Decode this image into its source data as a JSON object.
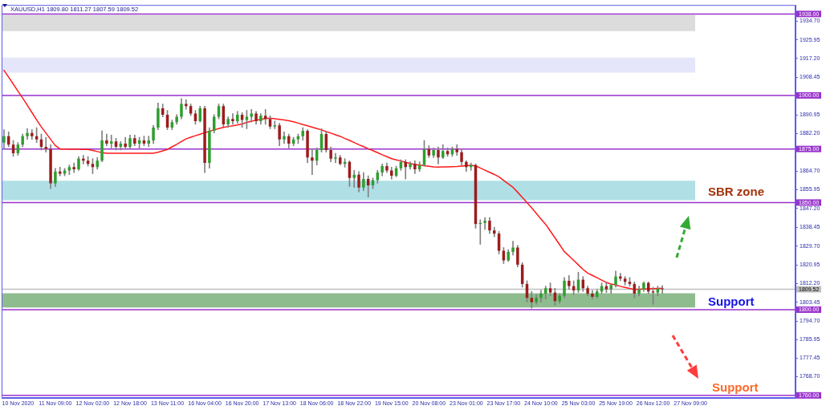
{
  "chart_data": {
    "type": "candlestick",
    "title": "XAUUSD,H1 1809.80 1811.27 1807.59 1809.52",
    "categories": [
      null,
      null,
      null,
      "10 Nov 2020",
      null,
      null,
      null,
      null,
      null,
      null,
      null,
      "11 Nov 09:00",
      null,
      null,
      null,
      null,
      null,
      null,
      null,
      "12 Nov 02:00",
      null,
      null,
      null,
      null,
      null,
      null,
      null,
      "12 Nov 18:00",
      null,
      null,
      null,
      null,
      null,
      null,
      null,
      "13 Nov 11:00",
      null,
      null,
      null,
      null,
      null,
      null,
      null,
      "16 Nov 04:00",
      null,
      null,
      null,
      null,
      null,
      null,
      null,
      "16 Nov 20:00",
      null,
      null,
      null,
      null,
      null,
      null,
      null,
      "17 Nov 13:00",
      null,
      null,
      null,
      null,
      null,
      null,
      null,
      "18 Nov 06:00",
      null,
      null,
      null,
      null,
      null,
      null,
      null,
      "18 Nov 22:00",
      null,
      null,
      null,
      null,
      null,
      null,
      null,
      "19 Nov 15:00",
      null,
      null,
      null,
      null,
      null,
      null,
      null,
      "20 Nov 08:00",
      null,
      null,
      null,
      null,
      null,
      null,
      null,
      "23 Nov 01:00",
      null,
      null,
      null,
      null,
      null,
      null,
      null,
      "23 Nov 17:00",
      null,
      null,
      null,
      null,
      null,
      null,
      null,
      "24 Nov 10:00",
      null,
      null,
      null,
      null,
      null,
      null,
      null,
      "25 Nov 03:00",
      null,
      null,
      null,
      null,
      null,
      null,
      null,
      "25 Nov 19:00",
      null,
      null,
      null,
      null,
      null,
      null,
      null,
      "26 Nov 12:00",
      null,
      null,
      null,
      null,
      null,
      null,
      null,
      "27 Nov 09:00",
      null,
      null,
      null,
      null,
      null,
      null,
      null,
      null,
      null,
      null,
      null,
      null,
      null,
      null,
      null,
      null,
      null,
      null,
      null,
      null,
      null,
      null
    ],
    "series": [
      {
        "color": "#808080",
        "ohlc": [
          [
            1878,
            1884,
            1875,
            1881
          ],
          [
            1881,
            1883,
            1876,
            1877
          ],
          [
            1877,
            1879,
            1871.5,
            1873
          ],
          [
            1873,
            1878,
            1872,
            1877
          ],
          [
            1877,
            1882,
            1876,
            1881
          ],
          [
            1881,
            1884.5,
            1879.5,
            1882.5
          ],
          [
            1882.5,
            1884,
            1879.5,
            1881
          ],
          [
            1881,
            1885,
            1878,
            1879.5
          ],
          [
            1879.5,
            1882,
            1874.5,
            1876
          ],
          [
            1876,
            1880.5,
            1873.5,
            1875
          ],
          [
            1875,
            1877,
            1856.5,
            1859
          ],
          [
            1859,
            1866,
            1857.5,
            1864.5
          ],
          [
            1864.5,
            1866.5,
            1862.5,
            1863.5
          ],
          [
            1863.5,
            1866,
            1862.5,
            1865
          ],
          [
            1865,
            1867.5,
            1863,
            1866.5
          ],
          [
            1866.5,
            1868.5,
            1864,
            1865.5
          ],
          [
            1865.5,
            1871.5,
            1865,
            1870.5
          ],
          [
            1870.5,
            1872,
            1868,
            1869.5
          ],
          [
            1869.5,
            1871.5,
            1867,
            1868
          ],
          [
            1868,
            1870.5,
            1863.5,
            1866.5
          ],
          [
            1866.5,
            1871,
            1865.5,
            1869.5
          ],
          [
            1869.5,
            1883.5,
            1869,
            1879
          ],
          [
            1879,
            1882,
            1876.5,
            1877.5
          ],
          [
            1877.5,
            1881.5,
            1875.5,
            1878.5
          ],
          [
            1878.5,
            1880,
            1874.5,
            1876
          ],
          [
            1876,
            1878.5,
            1874.5,
            1877.5
          ],
          [
            1877.5,
            1880.5,
            1875,
            1876
          ],
          [
            1876,
            1881.5,
            1875,
            1880
          ],
          [
            1880,
            1881.5,
            1876.5,
            1877.5
          ],
          [
            1877.5,
            1880.5,
            1875,
            1879
          ],
          [
            1879,
            1881,
            1876.5,
            1877.5
          ],
          [
            1877.5,
            1881,
            1876,
            1879
          ],
          [
            1879,
            1886,
            1877.5,
            1885
          ],
          [
            1885,
            1896.5,
            1884,
            1894
          ],
          [
            1894,
            1896,
            1890,
            1891
          ],
          [
            1891,
            1893,
            1884,
            1885
          ],
          [
            1885,
            1888.5,
            1884,
            1887.5
          ],
          [
            1887.5,
            1891,
            1886.5,
            1890
          ],
          [
            1890,
            1898.5,
            1889,
            1896
          ],
          [
            1896,
            1898,
            1893.5,
            1895
          ],
          [
            1895,
            1896,
            1890.5,
            1891.5
          ],
          [
            1891.5,
            1893,
            1886.5,
            1888
          ],
          [
            1888,
            1895,
            1887.5,
            1894
          ],
          [
            1894,
            1895,
            1864,
            1868.5
          ],
          [
            1868.5,
            1885,
            1866,
            1883.5
          ],
          [
            1883.5,
            1891,
            1882.5,
            1890
          ],
          [
            1890,
            1896,
            1889,
            1895
          ],
          [
            1895,
            1896,
            1885.5,
            1886.5
          ],
          [
            1886.5,
            1890,
            1885,
            1889
          ],
          [
            1889,
            1891.5,
            1886.5,
            1888
          ],
          [
            1888,
            1892.5,
            1887,
            1891
          ],
          [
            1891,
            1892,
            1885,
            1888.5
          ],
          [
            1888.5,
            1893,
            1884.5,
            1890
          ],
          [
            1890,
            1893.5,
            1887.5,
            1891.5
          ],
          [
            1891.5,
            1892.5,
            1886.5,
            1888
          ],
          [
            1888,
            1891.5,
            1886.5,
            1890.5
          ],
          [
            1890.5,
            1893.5,
            1886.5,
            1889
          ],
          [
            1889,
            1890.5,
            1884.5,
            1885.5
          ],
          [
            1885.5,
            1888,
            1884.5,
            1886
          ],
          [
            1886,
            1887,
            1876.5,
            1879.5
          ],
          [
            1879.5,
            1883,
            1877.5,
            1881
          ],
          [
            1881,
            1882,
            1875.5,
            1877.5
          ],
          [
            1877.5,
            1880.5,
            1876.5,
            1879.5
          ],
          [
            1879.5,
            1882,
            1877.5,
            1881
          ],
          [
            1881,
            1885,
            1879,
            1883.5
          ],
          [
            1883.5,
            1884,
            1868.5,
            1871
          ],
          [
            1871,
            1875,
            1863,
            1869.5
          ],
          [
            1869.5,
            1875.5,
            1867.5,
            1874.5
          ],
          [
            1874.5,
            1884.5,
            1873.5,
            1882
          ],
          [
            1882,
            1883,
            1873.5,
            1874.5
          ],
          [
            1874.5,
            1876,
            1869,
            1870.5
          ],
          [
            1870.5,
            1873,
            1868.5,
            1871
          ],
          [
            1871,
            1872,
            1867.5,
            1868
          ],
          [
            1868,
            1870.5,
            1866.5,
            1869
          ],
          [
            1869,
            1869.5,
            1857.5,
            1861.5
          ],
          [
            1861.5,
            1865,
            1857,
            1863
          ],
          [
            1863,
            1864.5,
            1855,
            1857
          ],
          [
            1857,
            1864,
            1855.5,
            1861
          ],
          [
            1861,
            1862.5,
            1852.5,
            1858
          ],
          [
            1858,
            1861.5,
            1856.5,
            1860.5
          ],
          [
            1860.5,
            1865,
            1859,
            1864
          ],
          [
            1864,
            1868,
            1862.5,
            1867
          ],
          [
            1867,
            1868.5,
            1864,
            1865
          ],
          [
            1865,
            1866.5,
            1861,
            1862.5
          ],
          [
            1862.5,
            1867,
            1862,
            1866
          ],
          [
            1866,
            1870,
            1865,
            1869
          ],
          [
            1869,
            1870,
            1861,
            1866.5
          ],
          [
            1866.5,
            1869,
            1865.5,
            1868
          ],
          [
            1868,
            1869.5,
            1863.5,
            1865.5
          ],
          [
            1865.5,
            1869,
            1864.5,
            1867.5
          ],
          [
            1867.5,
            1879,
            1867,
            1875
          ],
          [
            1875,
            1876.5,
            1871,
            1872
          ],
          [
            1872,
            1875.5,
            1871,
            1874.5
          ],
          [
            1874.5,
            1876,
            1868,
            1871
          ],
          [
            1871,
            1877,
            1870.5,
            1874
          ],
          [
            1874,
            1875.5,
            1871.5,
            1872.5
          ],
          [
            1872.5,
            1876,
            1871.5,
            1875
          ],
          [
            1875,
            1877,
            1872,
            1873.5
          ],
          [
            1873.5,
            1875,
            1867.5,
            1869
          ],
          [
            1869,
            1869.5,
            1864.5,
            1866.5
          ],
          [
            1866.5,
            1868.5,
            1865,
            1867.5
          ],
          [
            1867.5,
            1868,
            1838,
            1840
          ],
          [
            1840,
            1842,
            1830.5,
            1840.5
          ],
          [
            1840.5,
            1843,
            1837.5,
            1841.5
          ],
          [
            1841.5,
            1843,
            1835.5,
            1837
          ],
          [
            1837,
            1838.5,
            1834,
            1835.5
          ],
          [
            1835.5,
            1836.5,
            1826,
            1827.5
          ],
          [
            1827.5,
            1829,
            1821.5,
            1823
          ],
          [
            1823,
            1828,
            1822.5,
            1827
          ],
          [
            1827,
            1832,
            1825.5,
            1829
          ],
          [
            1829,
            1830,
            1820,
            1821
          ],
          [
            1821,
            1822,
            1810.5,
            1812
          ],
          [
            1812,
            1813.5,
            1803.5,
            1805.5
          ],
          [
            1805.5,
            1808.5,
            1800.7,
            1803.5
          ],
          [
            1803.5,
            1807,
            1802.5,
            1805.5
          ],
          [
            1805.5,
            1809,
            1803.5,
            1807.5
          ],
          [
            1807.5,
            1811,
            1805,
            1810
          ],
          [
            1810,
            1812.5,
            1806.5,
            1808
          ],
          [
            1808,
            1810,
            1802,
            1804
          ],
          [
            1804,
            1807.5,
            1803,
            1806.5
          ],
          [
            1806.5,
            1815,
            1805.5,
            1813.5
          ],
          [
            1813.5,
            1816,
            1809.5,
            1811
          ],
          [
            1811,
            1813.5,
            1807,
            1809
          ],
          [
            1809,
            1817.5,
            1808,
            1814
          ],
          [
            1814,
            1815.5,
            1808.5,
            1810
          ],
          [
            1810,
            1811,
            1806.5,
            1807.5
          ],
          [
            1807.5,
            1809,
            1805,
            1806
          ],
          [
            1806,
            1809.5,
            1805.5,
            1808.5
          ],
          [
            1808.5,
            1812.5,
            1807.5,
            1811
          ],
          [
            1811,
            1812.5,
            1808,
            1809.5
          ],
          [
            1809.5,
            1812,
            1807.5,
            1811.5
          ],
          [
            1811.5,
            1818,
            1810.5,
            1815.5
          ],
          [
            1815.5,
            1817,
            1813.5,
            1814.5
          ],
          [
            1814.5,
            1815.5,
            1811.5,
            1813
          ],
          [
            1813,
            1815,
            1811,
            1812
          ],
          [
            1812,
            1813,
            1805.5,
            1807.5
          ],
          [
            1807.5,
            1811,
            1806.5,
            1809.5
          ],
          [
            1809.5,
            1813,
            1808.5,
            1812.5
          ],
          [
            1812.5,
            1813,
            1807.5,
            1808.5
          ],
          [
            1808.5,
            1810.5,
            1802.5,
            1808
          ],
          [
            1808,
            1811,
            1806.5,
            1809.8
          ],
          [
            1809.8,
            1811.27,
            1807.59,
            1809.52
          ],
          null,
          null,
          null,
          null,
          null,
          null,
          null,
          null,
          null,
          null,
          null,
          null,
          null,
          null,
          null,
          null,
          null,
          null,
          null,
          null,
          null,
          null,
          null,
          null,
          null,
          null,
          null,
          null
        ],
        "colors": [
          "#2e9e2e",
          "#9b1c1c",
          "#9b1c1c",
          "#2e9e2e",
          "#2e9e2e",
          "#2e9e2e",
          "#9b1c1c",
          "#9b1c1c",
          "#9b1c1c",
          "#9b1c1c",
          "#9b1c1c",
          "#2e9e2e",
          "#9b1c1c",
          "#2e9e2e",
          "#2e9e2e",
          "#9b1c1c",
          "#2e9e2e",
          "#9b1c1c",
          "#9b1c1c",
          "#9b1c1c",
          "#2e9e2e",
          "#2e9e2e",
          "#9b1c1c",
          "#2e9e2e",
          "#9b1c1c",
          "#2e9e2e",
          "#9b1c1c",
          "#2e9e2e",
          "#9b1c1c",
          "#2e9e2e",
          "#9b1c1c",
          "#2e9e2e",
          "#2e9e2e",
          "#2e9e2e",
          "#9b1c1c",
          "#9b1c1c",
          "#2e9e2e",
          "#2e9e2e",
          "#2e9e2e",
          "#9b1c1c",
          "#9b1c1c",
          "#9b1c1c",
          "#2e9e2e",
          "#9b1c1c",
          "#2e9e2e",
          "#2e9e2e",
          "#2e9e2e",
          "#9b1c1c",
          "#2e9e2e",
          "#9b1c1c",
          "#2e9e2e",
          "#9b1c1c",
          "#2e9e2e",
          "#2e9e2e",
          "#9b1c1c",
          "#2e9e2e",
          "#9b1c1c",
          "#9b1c1c",
          "#2e9e2e",
          "#9b1c1c",
          "#2e9e2e",
          "#9b1c1c",
          "#2e9e2e",
          "#2e9e2e",
          "#2e9e2e",
          "#9b1c1c",
          "#9b1c1c",
          "#2e9e2e",
          "#2e9e2e",
          "#9b1c1c",
          "#9b1c1c",
          "#2e9e2e",
          "#9b1c1c",
          "#2e9e2e",
          "#9b1c1c",
          "#2e9e2e",
          "#9b1c1c",
          "#2e9e2e",
          "#9b1c1c",
          "#2e9e2e",
          "#2e9e2e",
          "#2e9e2e",
          "#9b1c1c",
          "#9b1c1c",
          "#2e9e2e",
          "#2e9e2e",
          "#9b1c1c",
          "#2e9e2e",
          "#9b1c1c",
          "#2e9e2e",
          "#2e9e2e",
          "#9b1c1c",
          "#2e9e2e",
          "#9b1c1c",
          "#2e9e2e",
          "#9b1c1c",
          "#2e9e2e",
          "#9b1c1c",
          "#9b1c1c",
          "#9b1c1c",
          "#2e9e2e",
          "#9b1c1c",
          "#2e9e2e",
          "#2e9e2e",
          "#9b1c1c",
          "#9b1c1c",
          "#9b1c1c",
          "#9b1c1c",
          "#2e9e2e",
          "#2e9e2e",
          "#9b1c1c",
          "#9b1c1c",
          "#9b1c1c",
          "#9b1c1c",
          "#2e9e2e",
          "#2e9e2e",
          "#2e9e2e",
          "#9b1c1c",
          "#9b1c1c",
          "#2e9e2e",
          "#2e9e2e",
          "#9b1c1c",
          "#9b1c1c",
          "#2e9e2e",
          "#9b1c1c",
          "#9b1c1c",
          "#9b1c1c",
          "#2e9e2e",
          "#2e9e2e",
          "#9b1c1c",
          "#2e9e2e",
          "#2e9e2e",
          "#9b1c1c",
          "#9b1c1c",
          "#9b1c1c",
          "#9b1c1c",
          "#2e9e2e",
          "#2e9e2e",
          "#9b1c1c",
          "#9b1c1c",
          "#2e9e2e",
          "#9b1c1c",
          null,
          null,
          null,
          null,
          null,
          null,
          null,
          null,
          null,
          null,
          null,
          null,
          null,
          null,
          null,
          null,
          null,
          null,
          null,
          null,
          null,
          null,
          null,
          null,
          null,
          null,
          null,
          null
        ]
      },
      {
        "type": "line",
        "color": "#ff1a1a",
        "values": [
          1911.7,
          1908.5,
          1905.3,
          1902.0,
          1898.8,
          1895.4,
          1892.0,
          1888.6,
          1885.3,
          1882.4,
          1879.5,
          1876.6,
          1875.0,
          1875.0,
          1874.9,
          1874.9,
          1874.9,
          1874.8,
          1874.8,
          1874.3,
          1873.8,
          1873.3,
          1873.0,
          1873.0,
          1873.0,
          1873.0,
          1873.0,
          1873.0,
          1873.0,
          1873.0,
          1873.0,
          1873.0,
          1873.0,
          1873.5,
          1874.1,
          1874.8,
          1876.0,
          1877.2,
          1878.5,
          1879.7,
          1880.5,
          1881.2,
          1881.9,
          1882.6,
          1883.2,
          1883.9,
          1884.5,
          1885.1,
          1885.5,
          1885.8,
          1886.2,
          1886.7,
          1887.4,
          1888.0,
          1888.4,
          1888.8,
          1889.2,
          1889.4,
          1889.1,
          1888.8,
          1888.5,
          1888.2,
          1887.7,
          1887.1,
          1886.4,
          1885.8,
          1885.2,
          1884.5,
          1883.9,
          1883.1,
          1882.4,
          1881.6,
          1880.9,
          1879.9,
          1879.0,
          1878.0,
          1877.0,
          1876.1,
          1875.1,
          1874.2,
          1873.3,
          1872.3,
          1871.4,
          1870.5,
          1869.9,
          1869.4,
          1868.8,
          1868.2,
          1867.8,
          1867.5,
          1867.2,
          1866.9,
          1866.6,
          1866.5,
          1866.6,
          1866.6,
          1866.7,
          1866.8,
          1867.0,
          1867.2,
          1867.4,
          1867.1,
          1866.1,
          1865.1,
          1864.1,
          1863.1,
          1862.0,
          1860.3,
          1858.7,
          1857.1,
          1854.8,
          1852.4,
          1850.0,
          1847.5,
          1844.9,
          1842.3,
          1839.8,
          1836.7,
          1833.5,
          1830.3,
          1827.1,
          1825.1,
          1823.0,
          1820.9,
          1818.8,
          1817.1,
          1816.0,
          1814.9,
          1813.8,
          1812.7,
          1812.0,
          1811.5,
          1810.9,
          1810.4,
          1809.9,
          1809.4,
          1809.5,
          1809.6,
          1809.7,
          1809.8,
          1809.9,
          1810.0,
          null,
          null,
          null,
          null,
          null,
          null,
          null,
          null,
          null,
          null,
          null,
          null,
          null,
          null,
          null,
          null,
          null,
          null,
          null,
          null,
          null,
          null,
          null,
          null,
          null,
          null,
          null,
          null
        ]
      }
    ],
    "ylim": [
      1758.8,
      1942.2
    ],
    "yticks": [
      {
        "value": 1934.7,
        "label": "1934.70"
      },
      {
        "value": 1925.95,
        "label": "1925.95"
      },
      {
        "value": 1917.2,
        "label": "1917.20"
      },
      {
        "value": 1908.45,
        "label": "1908.45"
      },
      {
        "value": 1890.95,
        "label": "1890.95"
      },
      {
        "value": 1882.2,
        "label": "1882.20"
      },
      {
        "value": 1864.7,
        "label": "1864.70"
      },
      {
        "value": 1855.95,
        "label": "1855.95"
      },
      {
        "value": 1847.2,
        "label": "1847.20"
      },
      {
        "value": 1838.45,
        "label": "1838.45"
      },
      {
        "value": 1829.7,
        "label": "1829.70"
      },
      {
        "value": 1820.95,
        "label": "1820.95"
      },
      {
        "value": 1812.2,
        "label": "1812.20"
      },
      {
        "value": 1803.45,
        "label": "1803.45"
      },
      {
        "value": 1794.7,
        "label": "1794.70"
      },
      {
        "value": 1785.95,
        "label": "1785.95"
      },
      {
        "value": 1777.45,
        "label": "1777.45"
      },
      {
        "value": 1768.7,
        "label": "1768.70"
      }
    ],
    "ref_lines": [
      {
        "axis": "y",
        "value": 1938,
        "label": "1938.00",
        "color": "#9932cc"
      },
      {
        "axis": "y",
        "value": 1900,
        "label": "1900.00",
        "color": "#9932cc"
      },
      {
        "axis": "y",
        "value": 1875,
        "label": "1875.00",
        "color": "#9932cc"
      },
      {
        "axis": "y",
        "value": 1850,
        "label": "1850.00",
        "color": "#9932cc"
      },
      {
        "axis": "y",
        "value": 1809.52,
        "label": "1809.52",
        "color": "#c0c0c0"
      },
      {
        "axis": "y",
        "value": 1800,
        "label": "1800.00",
        "color": "#9932cc"
      },
      {
        "axis": "y",
        "value": 1760,
        "label": "1760.00",
        "color": "#9932cc"
      }
    ],
    "bands": [
      {
        "axis": "y",
        "from": 1930,
        "to": 1937.5,
        "color": "#dcdcdc"
      },
      {
        "axis": "y",
        "from": 1910.6,
        "to": 1917.7,
        "color": "#e6e6fa"
      },
      {
        "axis": "y",
        "from": 1851.1,
        "to": 1860.2,
        "color": "#b0e0e6",
        "label": "SBR zone"
      },
      {
        "axis": "y",
        "from": 1801,
        "to": 1807.7,
        "color": "#8fbc8f",
        "label": "Support"
      }
    ],
    "annotations": [
      "Support"
    ],
    "marker": "none"
  }
}
